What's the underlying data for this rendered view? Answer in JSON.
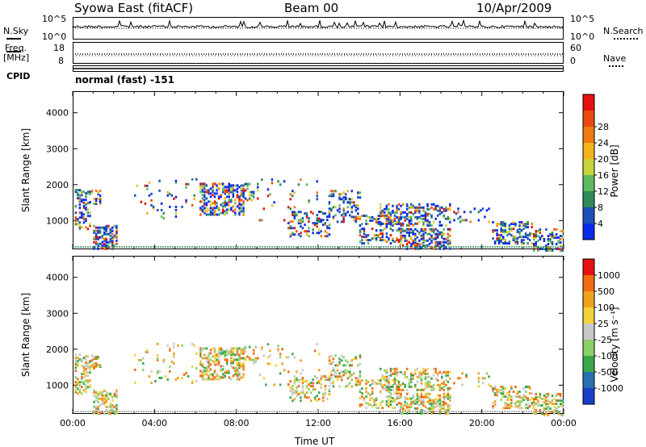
{
  "header": {
    "radar": "Syowa East (fitACF)",
    "beam": "Beam 00",
    "date": "10/Apr/2009"
  },
  "top_panels": {
    "nsky_label": "N.Sky",
    "nsearch_label": "N.Search",
    "nsky_ticks": [
      "10^5",
      "10^0"
    ],
    "nsearch_ticks": [
      "10^5",
      "10^0"
    ],
    "freq_label": "Freq.",
    "freq_unit": "[MHz]",
    "freq_ticks": [
      "18",
      "8"
    ],
    "nave_label": "Nave",
    "nave_ticks": [
      "60",
      "0"
    ],
    "cpid_label": "CPID",
    "cpid_text": "normal (fast) -151"
  },
  "chart_data": [
    {
      "type": "heatmap",
      "name": "Power",
      "ylabel": "Slant Range [km]",
      "yticks": [
        "1000",
        "2000",
        "3000",
        "4000"
      ],
      "ylim": [
        200,
        4600
      ],
      "xlim_hours": [
        0,
        24
      ],
      "colorbar": {
        "label": "Power [dB]",
        "ticks": [
          "4",
          "8",
          "12",
          "16",
          "20",
          "24",
          "28"
        ],
        "colors": [
          "#0a2be8",
          "#1f4fb8",
          "#2e8b57",
          "#5fb85f",
          "#c8d43a",
          "#f4b21c",
          "#f07a12",
          "#e84a10",
          "#e61010"
        ]
      }
    },
    {
      "type": "heatmap",
      "name": "Velocity",
      "ylabel": "Slant Range [km]",
      "yticks": [
        "1000",
        "2000",
        "3000",
        "4000"
      ],
      "ylim": [
        200,
        4600
      ],
      "xlim_hours": [
        0,
        24
      ],
      "xticks": [
        "00:00",
        "04:00",
        "08:00",
        "12:00",
        "16:00",
        "20:00",
        "00:00"
      ],
      "xlabel": "Time UT",
      "colorbar": {
        "label": "Velocity [m s⁻¹]",
        "ticks": [
          "1000",
          "500",
          "100",
          "25",
          "-25",
          "-100",
          "-500",
          "-1000"
        ],
        "colors": [
          "#1a3fc8",
          "#2a6fb0",
          "#3aa64c",
          "#8cd06a",
          "#c8c8c8",
          "#f0d23a",
          "#f0a020",
          "#f06a10",
          "#e61010"
        ]
      }
    }
  ]
}
